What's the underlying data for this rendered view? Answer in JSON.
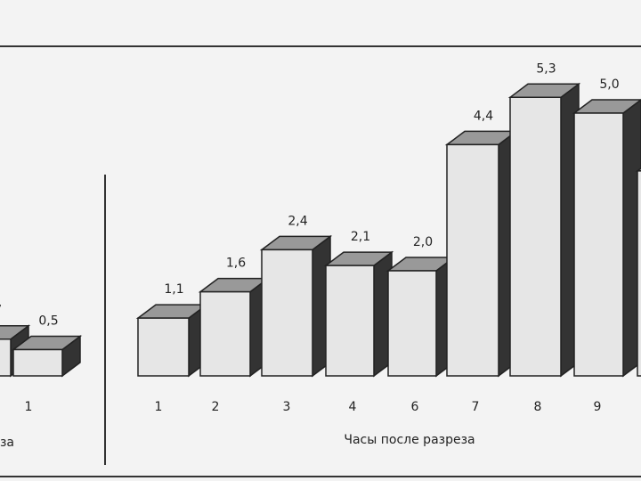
{
  "chart_data": [
    {
      "type": "bar3d",
      "x_label": "за",
      "categories": [
        null,
        "1"
      ],
      "values": [
        0.7,
        0.5
      ],
      "value_labels": [
        ",7",
        "0,5"
      ],
      "color": "#e6e6e6"
    },
    {
      "type": "bar3d",
      "x_label": "Часы после разреза",
      "categories": [
        "1",
        "2",
        "3",
        "4",
        "6",
        "7",
        "8",
        "9",
        null
      ],
      "values": [
        1.1,
        1.6,
        2.4,
        2.1,
        2.0,
        4.4,
        5.3,
        5.0,
        3.9
      ],
      "value_labels": [
        "1,1",
        "1,6",
        "2,4",
        "2,1",
        "2,0",
        "4,4",
        "5,3",
        "5,0",
        null
      ],
      "color": "#e6e6e6"
    }
  ]
}
